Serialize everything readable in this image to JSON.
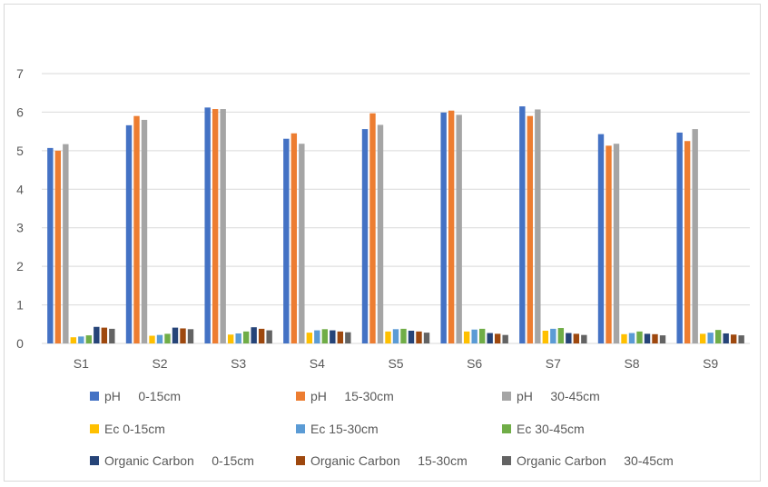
{
  "chart_data": {
    "type": "bar",
    "title": "",
    "xlabel": "",
    "ylabel": "",
    "ylim": [
      0,
      7
    ],
    "yticks": [
      0,
      1,
      2,
      3,
      4,
      5,
      6,
      7
    ],
    "grid": true,
    "legend_position": "bottom",
    "categories": [
      "S1",
      "S2",
      "S3",
      "S4",
      "S5",
      "S6",
      "S7",
      "S8",
      "S9"
    ],
    "series": [
      {
        "name": "pH     0-15cm",
        "color": "#4472c4",
        "values": [
          5.07,
          5.66,
          6.12,
          5.31,
          5.56,
          5.99,
          6.15,
          5.43,
          5.47
        ]
      },
      {
        "name": "pH     15-30cm",
        "color": "#ed7d31",
        "values": [
          5.0,
          5.9,
          6.08,
          5.45,
          5.97,
          6.04,
          5.9,
          5.13,
          5.25
        ]
      },
      {
        "name": "pH     30-45cm",
        "color": "#a5a5a5",
        "values": [
          5.17,
          5.8,
          6.08,
          5.18,
          5.67,
          5.93,
          6.07,
          5.18,
          5.56
        ]
      },
      {
        "name": "Ec 0-15cm",
        "color": "#ffc000",
        "values": [
          0.16,
          0.2,
          0.23,
          0.28,
          0.31,
          0.31,
          0.33,
          0.24,
          0.25
        ]
      },
      {
        "name": "Ec 15-30cm",
        "color": "#5b9bd5",
        "values": [
          0.18,
          0.22,
          0.26,
          0.34,
          0.37,
          0.36,
          0.38,
          0.27,
          0.28
        ]
      },
      {
        "name": "Ec 30-45cm",
        "color": "#70ad47",
        "values": [
          0.21,
          0.25,
          0.31,
          0.37,
          0.38,
          0.38,
          0.4,
          0.31,
          0.35
        ]
      },
      {
        "name": "Organic Carbon     0-15cm",
        "color": "#264478",
        "values": [
          0.43,
          0.41,
          0.42,
          0.34,
          0.33,
          0.27,
          0.27,
          0.25,
          0.26
        ]
      },
      {
        "name": "Organic Carbon     15-30cm",
        "color": "#9e480e",
        "values": [
          0.41,
          0.39,
          0.38,
          0.31,
          0.31,
          0.25,
          0.25,
          0.24,
          0.23
        ]
      },
      {
        "name": "Organic Carbon     30-45cm",
        "color": "#636363",
        "values": [
          0.38,
          0.37,
          0.34,
          0.29,
          0.28,
          0.22,
          0.22,
          0.21,
          0.21
        ]
      }
    ]
  }
}
